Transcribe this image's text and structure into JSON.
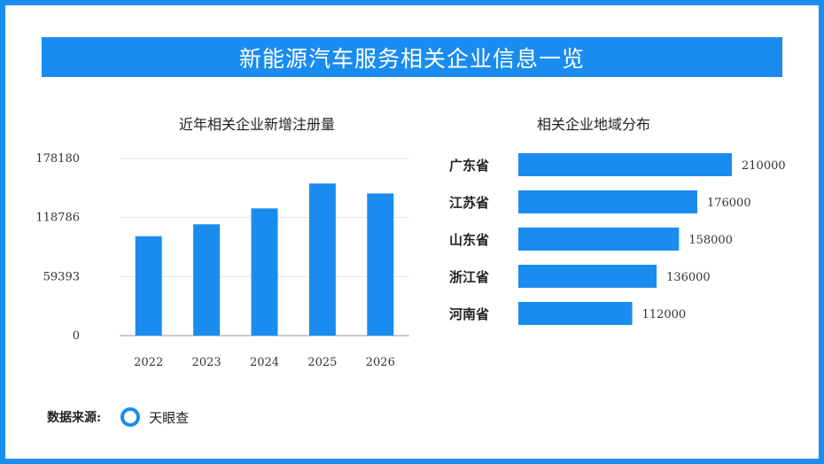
{
  "header": {
    "title": "新能源汽车服务相关企业信息一览"
  },
  "chart_data": [
    {
      "type": "bar",
      "title": "近年相关企业新增注册量",
      "categories": [
        "2022",
        "2023",
        "2024",
        "2025",
        "2026"
      ],
      "values": [
        100000,
        112000,
        128000,
        153000,
        143000
      ],
      "y_ticks": [
        "0",
        "59393",
        "118786",
        "178180"
      ],
      "ylim": [
        0,
        178180
      ],
      "grid": true,
      "colors": {
        "bar": "#1a8cf0"
      }
    },
    {
      "type": "bar",
      "orientation": "horizontal",
      "title": "相关企业地域分布",
      "categories": [
        "广东省",
        "江苏省",
        "山东省",
        "浙江省",
        "河南省"
      ],
      "values": [
        210000,
        176000,
        158000,
        136000,
        112000
      ],
      "value_labels": [
        "210000",
        "176000",
        "158000",
        "136000",
        "112000"
      ],
      "xlim": [
        0,
        210000
      ],
      "grid": false,
      "colors": {
        "bar": "#1a8cf0"
      }
    }
  ],
  "footer": {
    "source_label": "数据来源:",
    "source_icon": "tianyancha-ring-icon",
    "source_name": "天眼查"
  },
  "colors": {
    "accent": "#1a8cf0"
  }
}
